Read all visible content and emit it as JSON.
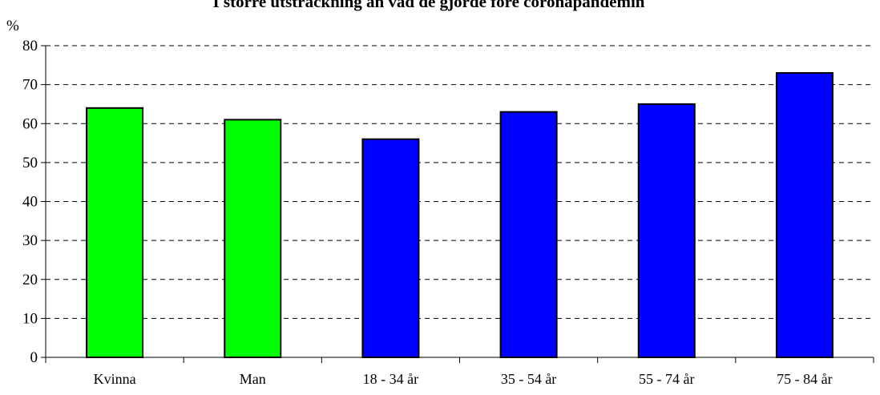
{
  "chart_data": {
    "type": "bar",
    "title": "I större utsträckning än vad de gjorde före coronapandemin",
    "ylabel": "%",
    "xlabel": "",
    "ylim": [
      0,
      80
    ],
    "yticks": [
      0,
      10,
      20,
      30,
      40,
      50,
      60,
      70,
      80
    ],
    "categories": [
      "Kvinna",
      "Man",
      "18 - 34 år",
      "35 - 54 år",
      "55 - 74 år",
      "75 - 84 år"
    ],
    "values": [
      64,
      61,
      56,
      63,
      65,
      73
    ],
    "bar_colors": [
      "#00ff00",
      "#00ff00",
      "#0000ff",
      "#0000ff",
      "#0000ff",
      "#0000ff"
    ],
    "grid": "horizontal-dashed",
    "legend": "none"
  }
}
